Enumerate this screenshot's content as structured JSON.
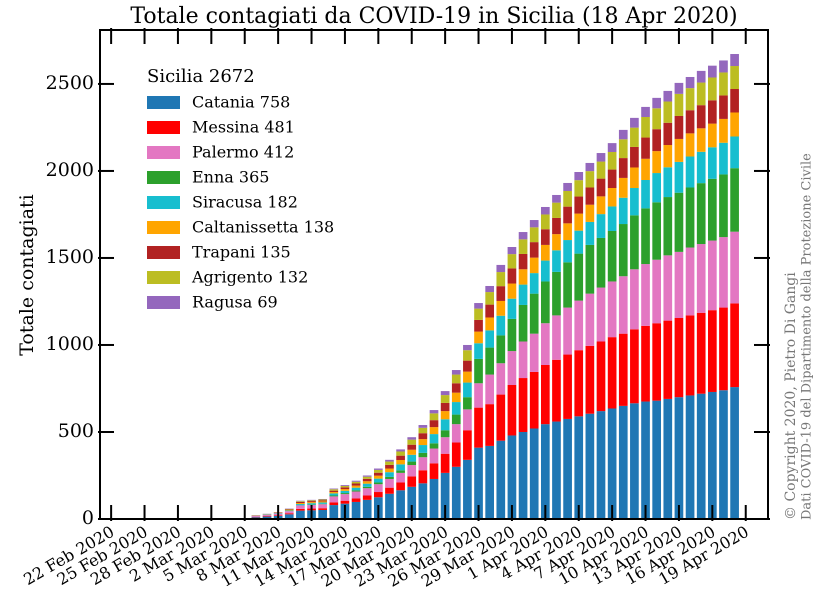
{
  "chart_data": {
    "type": "stacked_bar",
    "title": "Totale contagiati da COVID-19 in Sicilia (18 Apr 2020)",
    "ylabel": "Totale contagiati",
    "legend_title": "Sicilia  2672",
    "legend": "upper left",
    "annotations": [
      "© Copyright 2020, Pietro Di Gangi",
      "Dati COVID-19 del Dipartimento della Protezione Civile"
    ],
    "x": [
      "2020-03-06",
      "2020-03-07",
      "2020-03-08",
      "2020-03-09",
      "2020-03-10",
      "2020-03-11",
      "2020-03-12",
      "2020-03-13",
      "2020-03-14",
      "2020-03-15",
      "2020-03-16",
      "2020-03-17",
      "2020-03-18",
      "2020-03-19",
      "2020-03-20",
      "2020-03-21",
      "2020-03-22",
      "2020-03-23",
      "2020-03-24",
      "2020-03-25",
      "2020-03-26",
      "2020-03-27",
      "2020-03-28",
      "2020-03-29",
      "2020-03-30",
      "2020-03-31",
      "2020-04-01",
      "2020-04-02",
      "2020-04-03",
      "2020-04-04",
      "2020-04-05",
      "2020-04-06",
      "2020-04-07",
      "2020-04-08",
      "2020-04-09",
      "2020-04-10",
      "2020-04-11",
      "2020-04-12",
      "2020-04-13",
      "2020-04-14",
      "2020-04-15",
      "2020-04-16",
      "2020-04-17",
      "2020-04-18"
    ],
    "series": [
      {
        "name": "Catania 758",
        "color": "#1f77b4",
        "values": [
          10,
          14,
          18,
          27,
          48,
          50,
          52,
          80,
          88,
          98,
          110,
          125,
          145,
          165,
          185,
          205,
          230,
          265,
          300,
          340,
          410,
          420,
          450,
          480,
          500,
          520,
          545,
          560,
          575,
          590,
          605,
          620,
          635,
          650,
          665,
          675,
          680,
          690,
          700,
          710,
          720,
          730,
          740,
          758
        ]
      },
      {
        "name": "Messina 481",
        "color": "#ff0000",
        "values": [
          2,
          3,
          4,
          6,
          10,
          10,
          10,
          15,
          17,
          20,
          25,
          30,
          35,
          45,
          60,
          75,
          90,
          110,
          140,
          170,
          230,
          240,
          265,
          290,
          310,
          325,
          340,
          355,
          370,
          380,
          390,
          400,
          410,
          415,
          425,
          435,
          445,
          450,
          455,
          460,
          465,
          470,
          475,
          481
        ]
      },
      {
        "name": "Palermo 412",
        "color": "#e377c2",
        "values": [
          5,
          7,
          9,
          12,
          20,
          21,
          23,
          35,
          38,
          40,
          42,
          45,
          50,
          55,
          65,
          75,
          85,
          95,
          105,
          120,
          140,
          170,
          180,
          195,
          210,
          220,
          240,
          255,
          270,
          285,
          300,
          310,
          320,
          330,
          345,
          355,
          365,
          375,
          380,
          390,
          395,
          400,
          405,
          412
        ]
      },
      {
        "name": "Enna 365",
        "color": "#2ca02c",
        "values": [
          0,
          0,
          0,
          0,
          0,
          2,
          2,
          5,
          6,
          7,
          8,
          10,
          12,
          15,
          20,
          25,
          30,
          40,
          55,
          70,
          140,
          155,
          160,
          185,
          210,
          230,
          240,
          250,
          260,
          270,
          280,
          285,
          290,
          300,
          310,
          320,
          330,
          335,
          340,
          345,
          350,
          355,
          360,
          365
        ]
      },
      {
        "name": "Siracusa 182",
        "color": "#17becf",
        "values": [
          1,
          2,
          3,
          4,
          8,
          8,
          8,
          12,
          13,
          15,
          18,
          22,
          27,
          34,
          39,
          45,
          53,
          63,
          72,
          84,
          90,
          99,
          113,
          116,
          117,
          118,
          120,
          124,
          128,
          132,
          132,
          137,
          141,
          151,
          157,
          163,
          168,
          171,
          177,
          178,
          180,
          181,
          182,
          182
        ]
      },
      {
        "name": "Caltanissetta 138",
        "color": "#ffa500",
        "values": [
          1,
          1,
          2,
          3,
          6,
          6,
          6,
          8,
          10,
          12,
          14,
          17,
          21,
          25,
          29,
          34,
          40,
          47,
          54,
          63,
          67,
          74,
          85,
          87,
          88,
          89,
          90,
          93,
          96,
          98,
          99,
          102,
          106,
          114,
          118,
          122,
          126,
          128,
          132,
          133,
          135,
          136,
          137,
          138
        ]
      },
      {
        "name": "Trapani 135",
        "color": "#b22222",
        "values": [
          1,
          1,
          2,
          3,
          6,
          6,
          6,
          8,
          10,
          12,
          14,
          17,
          21,
          25,
          29,
          34,
          40,
          47,
          54,
          63,
          67,
          74,
          85,
          87,
          88,
          89,
          90,
          93,
          96,
          98,
          99,
          102,
          106,
          114,
          118,
          122,
          126,
          128,
          132,
          133,
          133,
          134,
          135,
          135
        ]
      },
      {
        "name": "Agrigento 132",
        "color": "#bcbd22",
        "values": [
          1,
          1,
          1,
          3,
          4,
          4,
          5,
          8,
          8,
          10,
          12,
          16,
          19,
          24,
          29,
          31,
          39,
          45,
          50,
          60,
          65,
          72,
          81,
          82,
          84,
          85,
          85,
          88,
          90,
          94,
          94,
          98,
          101,
          108,
          111,
          118,
          120,
          122,
          127,
          127,
          130,
          131,
          132,
          132
        ]
      },
      {
        "name": "Ragusa 69",
        "color": "#9467bd",
        "values": [
          1,
          1,
          1,
          2,
          3,
          3,
          3,
          4,
          5,
          6,
          7,
          8,
          10,
          12,
          14,
          16,
          19,
          23,
          26,
          30,
          32,
          35,
          41,
          41,
          42,
          42,
          43,
          44,
          46,
          47,
          47,
          49,
          51,
          54,
          56,
          58,
          60,
          61,
          63,
          64,
          67,
          68,
          69,
          69
        ]
      }
    ],
    "xlim": [
      "2020-02-21",
      "2020-04-21"
    ],
    "xticks": [
      {
        "value": "2020-02-22",
        "label": "22 Feb 2020"
      },
      {
        "value": "2020-02-25",
        "label": "25 Feb 2020"
      },
      {
        "value": "2020-02-28",
        "label": "28 Feb 2020"
      },
      {
        "value": "2020-03-02",
        "label": "2 Mar 2020"
      },
      {
        "value": "2020-03-05",
        "label": "5 Mar 2020"
      },
      {
        "value": "2020-03-08",
        "label": "8 Mar 2020"
      },
      {
        "value": "2020-03-11",
        "label": "11 Mar 2020"
      },
      {
        "value": "2020-03-14",
        "label": "14 Mar 2020"
      },
      {
        "value": "2020-03-17",
        "label": "17 Mar 2020"
      },
      {
        "value": "2020-03-20",
        "label": "20 Mar 2020"
      },
      {
        "value": "2020-03-23",
        "label": "23 Mar 2020"
      },
      {
        "value": "2020-03-26",
        "label": "26 Mar 2020"
      },
      {
        "value": "2020-03-29",
        "label": "29 Mar 2020"
      },
      {
        "value": "2020-04-01",
        "label": "1 Apr 2020"
      },
      {
        "value": "2020-04-04",
        "label": "4 Apr 2020"
      },
      {
        "value": "2020-04-07",
        "label": "7 Apr 2020"
      },
      {
        "value": "2020-04-10",
        "label": "10 Apr 2020"
      },
      {
        "value": "2020-04-13",
        "label": "13 Apr 2020"
      },
      {
        "value": "2020-04-16",
        "label": "16 Apr 2020"
      },
      {
        "value": "2020-04-19",
        "label": "19 Apr 2020"
      }
    ],
    "ylim": [
      0,
      2810
    ],
    "yticks": [
      0,
      500,
      1000,
      1500,
      2000,
      2500
    ],
    "grid": false
  }
}
